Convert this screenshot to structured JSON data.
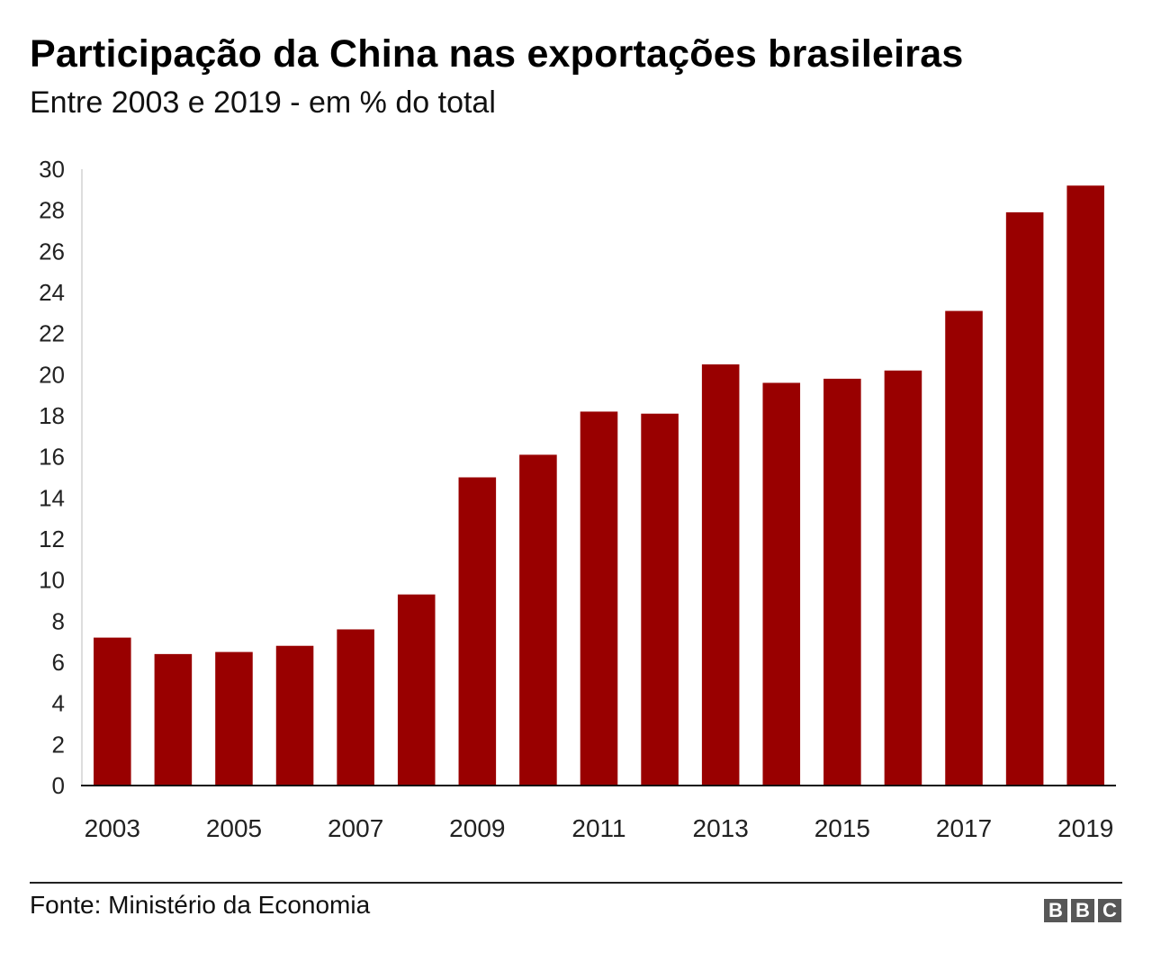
{
  "chart_data": {
    "type": "bar",
    "title": "Participação da China nas exportações brasileiras",
    "subtitle": "Entre 2003 e 2019 - em % do total",
    "categories": [
      "2003",
      "2004",
      "2005",
      "2006",
      "2007",
      "2008",
      "2009",
      "2010",
      "2011",
      "2012",
      "2013",
      "2014",
      "2015",
      "2016",
      "2017",
      "2018",
      "2019"
    ],
    "values": [
      7.2,
      6.4,
      6.5,
      6.8,
      7.6,
      9.3,
      15.0,
      16.1,
      18.2,
      18.1,
      20.5,
      19.6,
      19.8,
      20.2,
      23.1,
      27.9,
      29.2
    ],
    "x_tick_labels": [
      "2003",
      "2005",
      "2007",
      "2009",
      "2011",
      "2013",
      "2015",
      "2017",
      "2019"
    ],
    "y_ticks": [
      0,
      2,
      4,
      6,
      8,
      10,
      12,
      14,
      16,
      18,
      20,
      22,
      24,
      26,
      28,
      30
    ],
    "ylim": [
      0,
      30
    ],
    "xlabel": "",
    "ylabel": "",
    "bar_color": "#990000",
    "grid": false
  },
  "footer": {
    "source": "Fonte: Ministério da Economia",
    "logo_letters": [
      "B",
      "B",
      "C"
    ]
  }
}
